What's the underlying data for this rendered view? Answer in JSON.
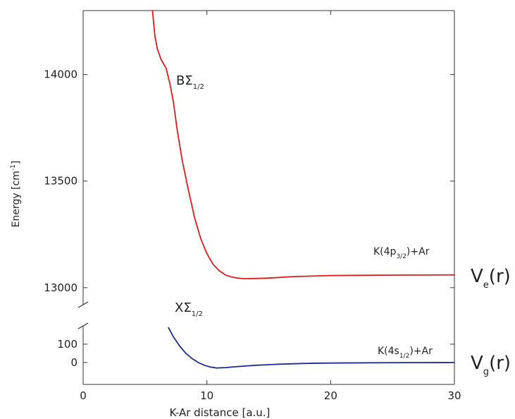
{
  "chart_data": {
    "type": "line",
    "title": "",
    "xlabel": "K-Ar distance [a.u.]",
    "ylabel": {
      "base": "Energy [cm",
      "sup": "-1",
      "close": "]"
    },
    "xlim": [
      0,
      30
    ],
    "x_ticks": [
      0,
      10,
      20,
      30
    ],
    "upper_panel": {
      "ylim": [
        12920,
        14300
      ],
      "y_ticks": [
        13000,
        13500,
        14000
      ]
    },
    "lower_panel": {
      "ylim": [
        -120,
        200
      ],
      "y_ticks": [
        0,
        100
      ]
    },
    "grid": false,
    "series": [
      {
        "panel": "upper",
        "color": "#e0191b",
        "x": [
          5.6,
          5.8,
          6.0,
          6.3,
          6.7,
          7.0,
          7.3,
          7.6,
          8.0,
          8.5,
          9.0,
          9.5,
          10.0,
          10.5,
          11.0,
          11.5,
          12.0,
          12.5,
          13.0,
          14.0,
          15.0,
          17.0,
          20.0,
          25.0,
          30.0
        ],
        "y": [
          14300,
          14180,
          14120,
          14070,
          14030,
          13960,
          13870,
          13740,
          13600,
          13460,
          13330,
          13230,
          13160,
          13110,
          13080,
          13060,
          13050,
          13045,
          13042,
          13043,
          13045,
          13052,
          13057,
          13059,
          13060
        ]
      },
      {
        "panel": "lower",
        "color": "#1f2b8e",
        "x": [
          6.9,
          7.3,
          7.8,
          8.3,
          8.8,
          9.3,
          9.8,
          10.3,
          10.8,
          11.5,
          12.5,
          14.0,
          16.0,
          18.0,
          20.0,
          25.0,
          30.0
        ],
        "y": [
          190,
          140,
          90,
          50,
          22,
          0,
          -15,
          -25,
          -30,
          -28,
          -22,
          -15,
          -9,
          -5,
          -3,
          -1,
          0
        ]
      }
    ],
    "annotations": {
      "upper_state": {
        "main": "BΣ",
        "sub": "1/2"
      },
      "lower_state": {
        "main": "XΣ",
        "sub": "1/2"
      },
      "upper_asymptote": {
        "pre": "K(4p",
        "sub": "3/2",
        "post": ")+Ar"
      },
      "lower_asymptote": {
        "pre": "K(4s",
        "sub": "1/2",
        "post": ")+Ar"
      },
      "upper_potential": {
        "main": "V",
        "sub": "e",
        "post": "(r)"
      },
      "lower_potential": {
        "main": "V",
        "sub": "g",
        "post": "(r)"
      }
    }
  }
}
